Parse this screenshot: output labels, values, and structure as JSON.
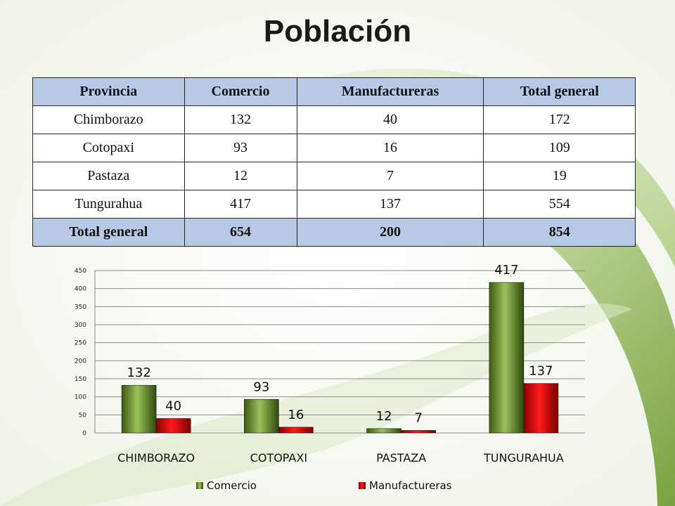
{
  "title": "Población",
  "table": {
    "headers": [
      "Provincia",
      "Comercio",
      "Manufactureras",
      "Total general"
    ],
    "rows": [
      [
        "Chimborazo",
        "132",
        "40",
        "172"
      ],
      [
        "Cotopaxi",
        "93",
        "16",
        "109"
      ],
      [
        "Pastaza",
        "12",
        "7",
        "19"
      ],
      [
        "Tungurahua",
        "417",
        "137",
        "554"
      ]
    ],
    "total": [
      "Total general",
      "654",
      "200",
      "854"
    ]
  },
  "colors": {
    "comercio": "#7a9a3a",
    "manufactureras": "#e00000",
    "header_fill": "#b7c9e6"
  },
  "chart_data": {
    "type": "bar",
    "title": "",
    "xlabel": "",
    "ylabel": "",
    "categories": [
      "CHIMBORAZO",
      "COTOPAXI",
      "PASTAZA",
      "TUNGURAHUA"
    ],
    "series": [
      {
        "name": "Comercio",
        "values": [
          132,
          93,
          12,
          417
        ]
      },
      {
        "name": "Manufactureras",
        "values": [
          40,
          16,
          7,
          137
        ]
      }
    ],
    "ylim": [
      0,
      450
    ],
    "yticks": [
      "0",
      "50",
      "100",
      "150",
      "200",
      "250",
      "300",
      "350",
      "400",
      "450"
    ],
    "data_labels": true,
    "grid": true,
    "legend": "bottom"
  }
}
